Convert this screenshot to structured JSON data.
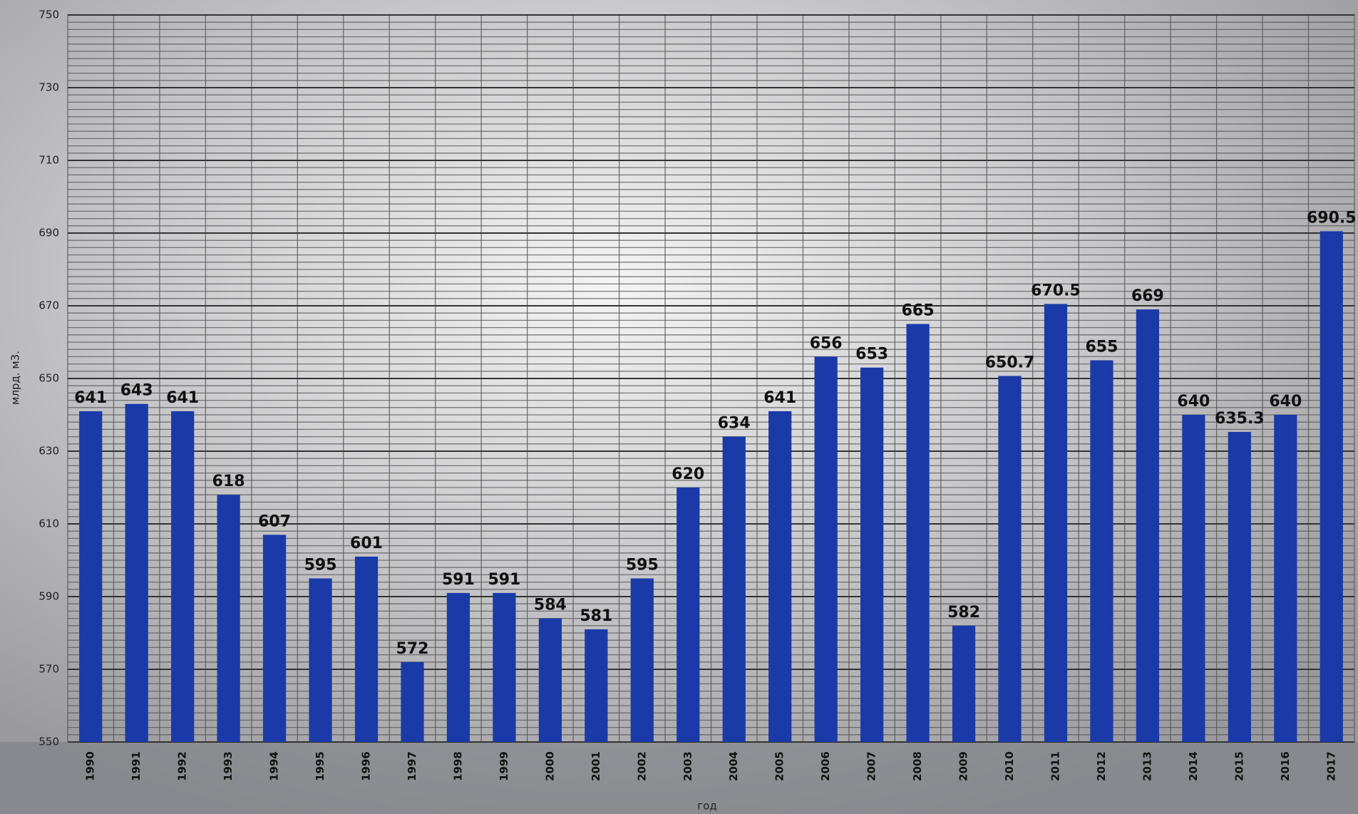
{
  "chart_data": {
    "type": "bar",
    "y_label": "млрд. м3.",
    "x_label": "год",
    "categories": [
      "1990",
      "1991",
      "1992",
      "1993",
      "1994",
      "1995",
      "1996",
      "1997",
      "1998",
      "1999",
      "2000",
      "2001",
      "2002",
      "2003",
      "2004",
      "2005",
      "2006",
      "2007",
      "2008",
      "2009",
      "2010",
      "2011",
      "2012",
      "2013",
      "2014",
      "2015",
      "2016",
      "2017"
    ],
    "values": [
      641,
      643,
      641,
      618,
      607,
      595,
      601,
      572,
      591,
      591,
      584,
      581,
      595,
      620,
      634,
      641,
      656,
      653,
      665,
      582,
      650.7,
      670.5,
      655,
      669,
      640,
      635.3,
      640,
      690.5
    ],
    "color": "#1a3aa8",
    "ylim": [
      550,
      750
    ],
    "yticks": [
      550,
      570,
      590,
      610,
      630,
      650,
      670,
      690,
      710,
      730,
      750
    ],
    "grid": true
  }
}
